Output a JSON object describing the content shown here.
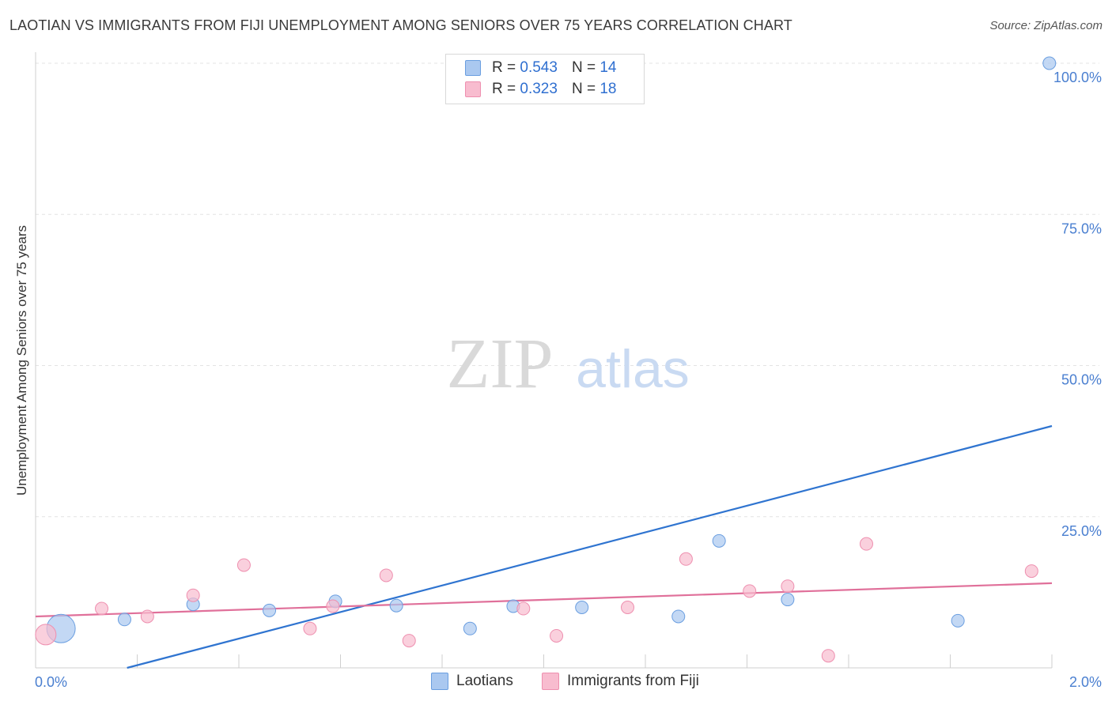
{
  "title": "LAOTIAN VS IMMIGRANTS FROM FIJI UNEMPLOYMENT AMONG SENIORS OVER 75 YEARS CORRELATION CHART",
  "source": "Source: ZipAtlas.com",
  "watermark": {
    "zip": "ZIP",
    "atlas": "atlas"
  },
  "legend": {
    "rows": [
      {
        "r_label": "R =",
        "r_value": "0.543",
        "n_label": "N =",
        "n_value": "14"
      },
      {
        "r_label": "R =",
        "r_value": "0.323",
        "n_label": "N =",
        "n_value": "18"
      }
    ]
  },
  "colors": {
    "laotians_fill": "#aac8f0",
    "laotians_stroke": "#6a9ee0",
    "laotians_line": "#2f74d0",
    "fiji_fill": "#f8bccf",
    "fiji_stroke": "#ee8faf",
    "fiji_line": "#e0709a",
    "axis_text": "#4a7fd0"
  },
  "chart_data": {
    "type": "scatter",
    "title": "LAOTIAN VS IMMIGRANTS FROM FIJI UNEMPLOYMENT AMONG SENIORS OVER 75 YEARS CORRELATION CHART",
    "xlabel": "",
    "ylabel": "Unemployment Among Seniors over 75 years",
    "xlim": [
      0,
      2.0
    ],
    "ylim": [
      0,
      100
    ],
    "x_tick_labels": [
      "0.0%",
      "2.0%"
    ],
    "y_tick_labels": [
      "100.0%",
      "75.0%",
      "50.0%",
      "25.0%"
    ],
    "y_ticks": [
      100,
      75,
      50,
      25
    ],
    "legend_position": "top-center",
    "series": [
      {
        "name": "Laotians",
        "R": 0.543,
        "N": 14,
        "points": [
          {
            "x": 0.05,
            "y": 6.5,
            "size": "large"
          },
          {
            "x": 0.175,
            "y": 8.0
          },
          {
            "x": 0.31,
            "y": 10.5
          },
          {
            "x": 0.46,
            "y": 9.5
          },
          {
            "x": 0.59,
            "y": 11.0
          },
          {
            "x": 0.71,
            "y": 10.3
          },
          {
            "x": 0.855,
            "y": 6.5
          },
          {
            "x": 0.94,
            "y": 10.2
          },
          {
            "x": 1.075,
            "y": 10.0
          },
          {
            "x": 1.265,
            "y": 8.5
          },
          {
            "x": 1.345,
            "y": 21.0
          },
          {
            "x": 1.48,
            "y": 11.3
          },
          {
            "x": 1.815,
            "y": 7.8
          },
          {
            "x": 1.995,
            "y": 100.0
          }
        ],
        "trend": {
          "x": [
            0.18,
            2.0
          ],
          "y": [
            0.0,
            40.0
          ]
        }
      },
      {
        "name": "Immigrants from Fiji",
        "R": 0.323,
        "N": 18,
        "points": [
          {
            "x": 0.02,
            "y": 5.5,
            "size": "medium"
          },
          {
            "x": 0.13,
            "y": 9.8
          },
          {
            "x": 0.22,
            "y": 8.5
          },
          {
            "x": 0.31,
            "y": 12.0
          },
          {
            "x": 0.41,
            "y": 17.0
          },
          {
            "x": 0.54,
            "y": 6.5
          },
          {
            "x": 0.585,
            "y": 10.2
          },
          {
            "x": 0.69,
            "y": 15.3
          },
          {
            "x": 0.735,
            "y": 4.5
          },
          {
            "x": 0.96,
            "y": 9.8
          },
          {
            "x": 1.025,
            "y": 5.3
          },
          {
            "x": 1.165,
            "y": 10.0
          },
          {
            "x": 1.28,
            "y": 18.0
          },
          {
            "x": 1.405,
            "y": 12.7
          },
          {
            "x": 1.48,
            "y": 13.5
          },
          {
            "x": 1.56,
            "y": 2.0
          },
          {
            "x": 1.635,
            "y": 20.5
          },
          {
            "x": 1.96,
            "y": 16.0
          }
        ],
        "trend": {
          "x": [
            0.0,
            2.0
          ],
          "y": [
            8.5,
            14.0
          ]
        }
      }
    ]
  },
  "bottom_legend": [
    {
      "label": "Laotians"
    },
    {
      "label": "Immigrants from Fiji"
    }
  ]
}
